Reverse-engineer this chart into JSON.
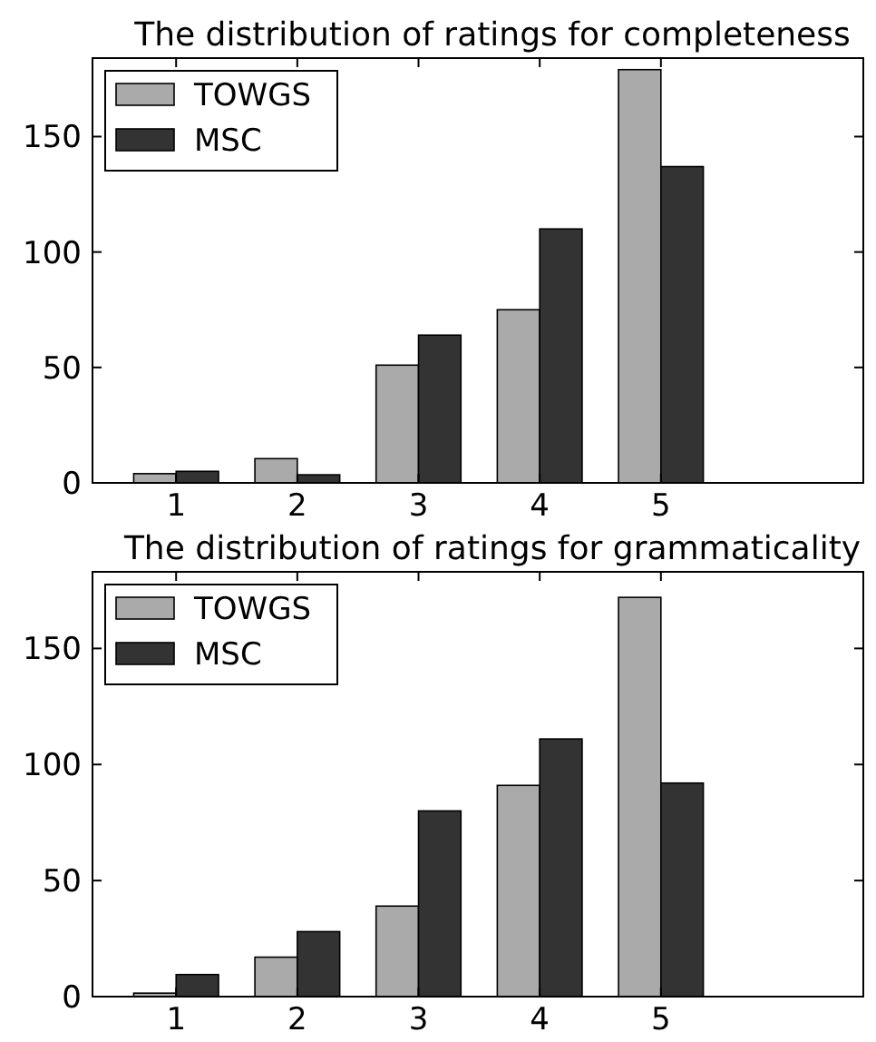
{
  "chart_data": [
    {
      "type": "bar",
      "title": "The distribution of ratings for completeness",
      "categories": [
        "1",
        "2",
        "3",
        "4",
        "5"
      ],
      "series": [
        {
          "name": "TOWGS",
          "color": "#aaaaaa",
          "values": [
            4,
            10.5,
            51,
            75,
            179
          ]
        },
        {
          "name": "MSC",
          "color": "#333333",
          "values": [
            5,
            3.5,
            64,
            110,
            137
          ]
        }
      ],
      "ylim": [
        0,
        184
      ],
      "yticks": [
        0,
        50,
        100,
        150
      ],
      "legend": "top left"
    },
    {
      "type": "bar",
      "title": "The distribution of ratings for grammaticality",
      "categories": [
        "1",
        "2",
        "3",
        "4",
        "5"
      ],
      "series": [
        {
          "name": "TOWGS",
          "color": "#aaaaaa",
          "values": [
            1.5,
            17,
            39,
            91,
            172
          ]
        },
        {
          "name": "MSC",
          "color": "#333333",
          "values": [
            9.5,
            28,
            80,
            111,
            92
          ]
        }
      ],
      "ylim": [
        0,
        183
      ],
      "yticks": [
        0,
        50,
        100,
        150
      ],
      "legend": "top left"
    }
  ]
}
